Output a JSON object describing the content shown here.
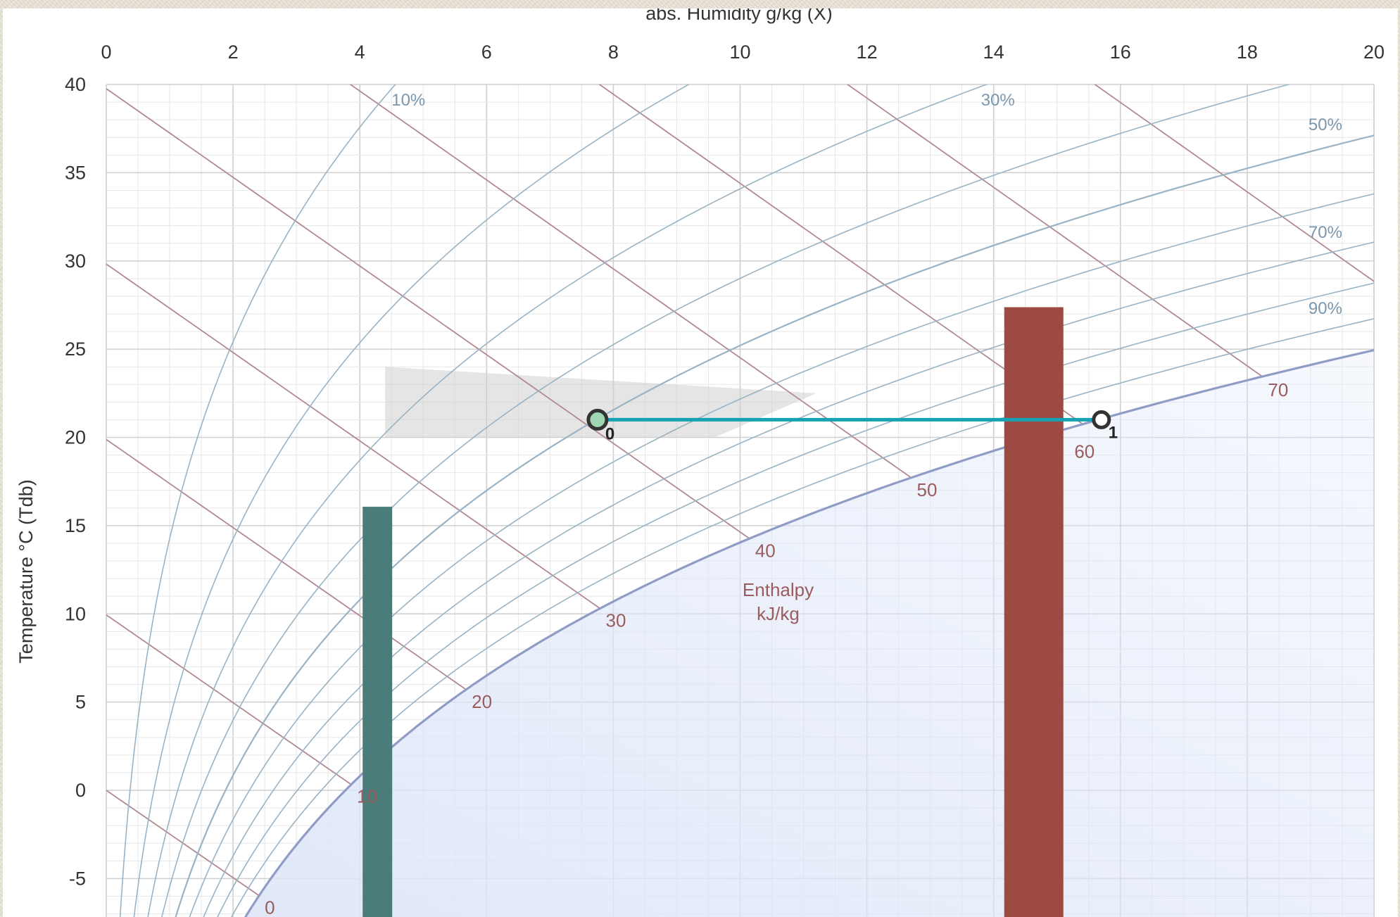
{
  "chart_data": {
    "type": "psychrometric",
    "xlabel": "abs. Humidity g/kg (X)",
    "ylabel": "Temperature °C (Tdb)",
    "xlim": [
      0,
      20
    ],
    "ylim": [
      -7,
      40
    ],
    "x_ticks": [
      0,
      2,
      4,
      6,
      8,
      10,
      12,
      14,
      16,
      18,
      20
    ],
    "y_ticks": [
      40,
      35,
      30,
      25,
      20,
      15,
      10,
      5,
      0,
      -5
    ],
    "grid": true,
    "rh_curves_percent": [
      10,
      20,
      30,
      40,
      50,
      60,
      70,
      80,
      90,
      100
    ],
    "rh_curve_labels": [
      "10%",
      "30%",
      "50%",
      "70%",
      "90%"
    ],
    "enthalpy_lines_kj_per_kg": [
      0,
      10,
      20,
      30,
      40,
      50,
      60,
      70,
      80
    ],
    "enthalpy_labels": [
      "0",
      "10",
      "20",
      "30",
      "40",
      "50",
      "60",
      "70"
    ],
    "enthalpy_title": [
      "Enthalpy",
      "kJ/kg"
    ],
    "comfort_zone": {
      "polygon": [
        [
          4.4,
          24
        ],
        [
          11.2,
          22.5
        ],
        [
          9.6,
          20
        ],
        [
          4.4,
          20
        ]
      ],
      "color": "#cfcfcf"
    },
    "process": {
      "points": [
        {
          "label": "0",
          "x": 7.75,
          "y": 21
        },
        {
          "label": "1",
          "x": 15.7,
          "y": 21
        }
      ],
      "color": "#17a2b3"
    },
    "bars": [
      {
        "x": 4.3,
        "value": 23.3,
        "color": "#4a7c7a"
      },
      {
        "x": 14.6,
        "value": 34.5,
        "color": "#9c4a42"
      }
    ],
    "colors": {
      "grid": "#d2d2d2",
      "rh_curve": "#9ab3c4",
      "saturation_curve": "#8f9cc6",
      "enthalpy_line": "#b08a92",
      "saturation_fill": "#dde6f8"
    }
  }
}
